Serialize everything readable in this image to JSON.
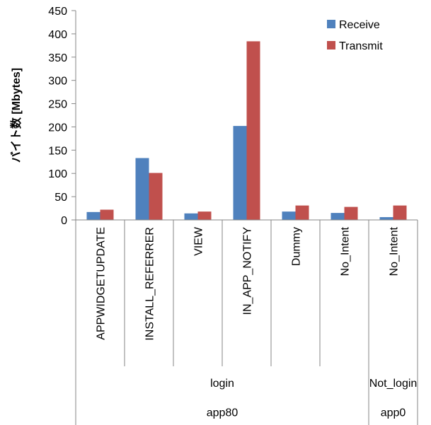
{
  "chart_data": {
    "type": "bar",
    "title": "",
    "xlabel": "",
    "ylabel": "バイト数 [Mbytes]",
    "ylim": [
      0,
      450
    ],
    "yticks": [
      0,
      50,
      100,
      150,
      200,
      250,
      300,
      350,
      400,
      450
    ],
    "grid": false,
    "legend_position": "top-right",
    "categories": [
      "APPWIDGETUPDATE",
      "INSTALL_REFERRER",
      "VIEW",
      "IN_APP_NOTIFY",
      "Dummy",
      "No_Intent",
      "No_Intent"
    ],
    "category_groups": [
      {
        "level": 2,
        "label": "login",
        "span": 6
      },
      {
        "level": 2,
        "label": "Not_login",
        "span": 1
      },
      {
        "level": 3,
        "label": "app80",
        "span": 6
      },
      {
        "level": 3,
        "label": "app0",
        "span": 1
      }
    ],
    "series": [
      {
        "name": "Receive",
        "color": "#4F81BD",
        "values": [
          17,
          133,
          14,
          202,
          18,
          15,
          6
        ]
      },
      {
        "name": "Transmit",
        "color": "#C0504D",
        "values": [
          22,
          101,
          18,
          384,
          31,
          28,
          31
        ]
      }
    ]
  }
}
